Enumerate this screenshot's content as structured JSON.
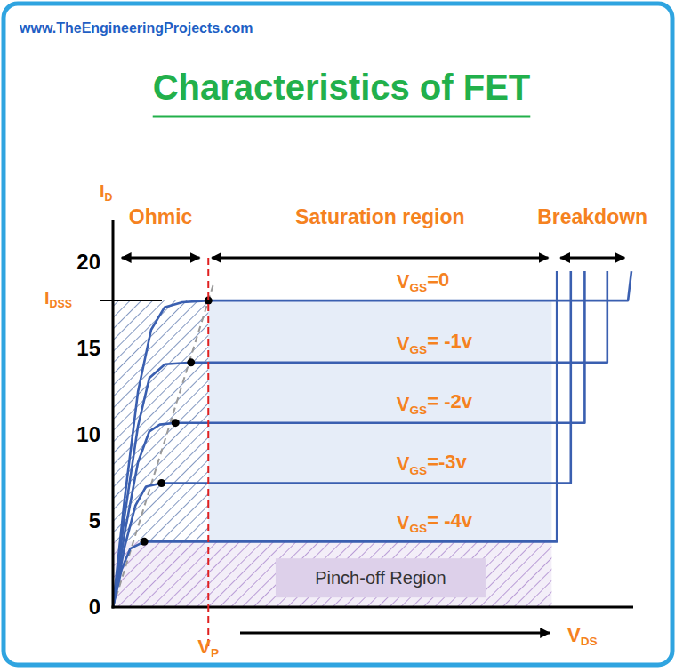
{
  "header": {
    "site": "www.TheEngineeringProjects.com"
  },
  "chart_data": {
    "type": "line",
    "title": "Characteristics of FET",
    "x_label": "VDS",
    "y_label": "ID",
    "xlim": [
      0,
      30
    ],
    "ylim": [
      0,
      22.5
    ],
    "yticks": [
      0,
      5,
      10,
      15,
      20
    ],
    "tick_labels": "y",
    "grid": false,
    "series": [
      {
        "name": "VGS=0",
        "color": "#3a5fb0",
        "x": [
          0,
          0.67,
          1.44,
          2.2,
          2.97,
          4.0,
          5.5,
          29.7,
          29.9
        ],
        "values": [
          0,
          6.3,
          12.5,
          16.1,
          17.4,
          17.7,
          17.8,
          17.8,
          19.5
        ]
      },
      {
        "name": "VGS= -1v",
        "color": "#3a5fb0",
        "x": [
          0,
          0.67,
          1.44,
          2.1,
          3.0,
          4.5,
          28.5,
          28.5
        ],
        "values": [
          0,
          5.3,
          10.5,
          13.3,
          14.1,
          14.2,
          14.2,
          19.5
        ]
      },
      {
        "name": "VGS= -2v",
        "color": "#3a5fb0",
        "x": [
          0,
          0.67,
          1.44,
          2.1,
          2.7,
          3.6,
          27.2,
          27.2
        ],
        "values": [
          0,
          4.3,
          8.4,
          10.2,
          10.6,
          10.7,
          10.7,
          19.5
        ]
      },
      {
        "name": "VGS=-3v",
        "color": "#3a5fb0",
        "x": [
          0,
          0.67,
          1.3,
          1.9,
          2.8,
          26.4,
          26.4
        ],
        "values": [
          0,
          3.5,
          5.9,
          7.0,
          7.2,
          7.2,
          19.5
        ]
      },
      {
        "name": "VGS= -4v",
        "color": "#3a5fb0",
        "x": [
          0,
          0.5,
          1.0,
          1.8,
          25.6,
          25.6
        ],
        "values": [
          0,
          2.2,
          3.4,
          3.8,
          3.8,
          19.5
        ]
      }
    ],
    "knee_points": {
      "x": [
        5.5,
        4.5,
        3.6,
        2.8,
        1.8
      ],
      "values": [
        17.8,
        14.2,
        10.7,
        7.2,
        3.8
      ]
    },
    "idss": {
      "label": "IDSS",
      "value": 17.8
    },
    "vp": {
      "label": "VP",
      "value": 5.5
    },
    "regions": [
      {
        "label": "Ohmic",
        "x": [
          0.3,
          5.2
        ]
      },
      {
        "label": "Saturation region",
        "x": [
          5.5,
          25.3
        ]
      },
      {
        "label": "Breakdown",
        "x": [
          25.6,
          29.7
        ]
      }
    ],
    "pinch_off": {
      "label": "Pinch-off Region",
      "x": [
        0,
        25.3
      ],
      "y": [
        0,
        3.8
      ]
    }
  }
}
